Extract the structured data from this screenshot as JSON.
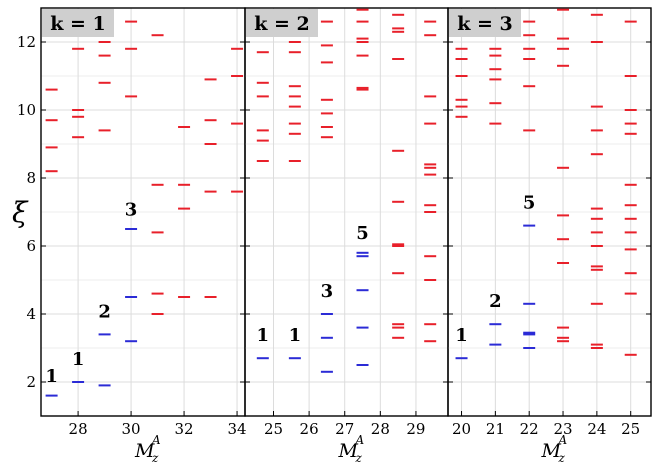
{
  "chart_data": {
    "type": "scatter",
    "ylabel": "ξ",
    "ylim": [
      1,
      13
    ],
    "y_ticks": [
      2,
      4,
      6,
      8,
      10,
      12
    ],
    "grid": true,
    "colors": {
      "red": "#e8202a",
      "blue": "#2b2bd6"
    },
    "panels": [
      {
        "label": "k = 1",
        "xlabel_main": "M",
        "xlabel_sub": "z",
        "xlabel_sup": "A",
        "xlim": [
          26.6,
          34.3
        ],
        "x_ticks": [
          28,
          30,
          32,
          34
        ],
        "series": [
          {
            "color": "red",
            "points": [
              [
                27,
                8.2
              ],
              [
                27,
                8.9
              ],
              [
                27,
                9.7
              ],
              [
                27,
                10.6
              ],
              [
                28,
                9.2
              ],
              [
                28,
                9.8
              ],
              [
                28,
                10.0
              ],
              [
                28,
                11.8
              ],
              [
                29,
                9.4
              ],
              [
                29,
                10.8
              ],
              [
                29,
                11.6
              ],
              [
                29,
                12.0
              ],
              [
                30,
                10.4
              ],
              [
                30,
                11.8
              ],
              [
                30,
                12.6
              ],
              [
                31,
                4.0
              ],
              [
                31,
                4.6
              ],
              [
                31,
                6.4
              ],
              [
                31,
                7.8
              ],
              [
                31,
                12.2
              ],
              [
                32,
                4.5
              ],
              [
                32,
                7.1
              ],
              [
                32,
                7.8
              ],
              [
                32,
                9.5
              ],
              [
                33,
                4.5
              ],
              [
                33,
                7.6
              ],
              [
                33,
                9.0
              ],
              [
                33,
                9.7
              ],
              [
                33,
                10.9
              ],
              [
                34,
                7.6
              ],
              [
                34,
                9.6
              ],
              [
                34,
                11.0
              ],
              [
                34,
                11.8
              ]
            ]
          },
          {
            "color": "blue",
            "points": [
              [
                27,
                1.6
              ],
              [
                28,
                2.0
              ],
              [
                29,
                1.9
              ],
              [
                29,
                3.4
              ],
              [
                30,
                3.2
              ],
              [
                30,
                4.5
              ],
              [
                30,
                6.5
              ]
            ]
          }
        ],
        "annotations": [
          {
            "text": "1",
            "x": 27,
            "y": 2.0
          },
          {
            "text": "1",
            "x": 28,
            "y": 2.5
          },
          {
            "text": "2",
            "x": 29,
            "y": 3.9
          },
          {
            "text": "3",
            "x": 30,
            "y": 6.9
          }
        ]
      },
      {
        "label": "k = 2",
        "xlabel_main": "M",
        "xlabel_sub": "z",
        "xlabel_sup": "A",
        "xlim": [
          24.2,
          29.9
        ],
        "x_ticks": [
          25,
          26,
          27,
          28,
          29
        ],
        "series": [
          {
            "color": "red",
            "points": [
              [
                24.7,
                8.5
              ],
              [
                24.7,
                9.1
              ],
              [
                24.7,
                9.4
              ],
              [
                24.7,
                10.4
              ],
              [
                24.7,
                10.8
              ],
              [
                24.7,
                11.7
              ],
              [
                24.7,
                12.4
              ],
              [
                25.6,
                8.5
              ],
              [
                25.6,
                9.3
              ],
              [
                25.6,
                9.6
              ],
              [
                25.6,
                10.1
              ],
              [
                25.6,
                10.4
              ],
              [
                25.6,
                10.7
              ],
              [
                25.6,
                11.7
              ],
              [
                25.6,
                12.0
              ],
              [
                26.5,
                9.2
              ],
              [
                26.5,
                9.5
              ],
              [
                26.5,
                9.9
              ],
              [
                26.5,
                10.3
              ],
              [
                26.5,
                11.4
              ],
              [
                26.5,
                11.9
              ],
              [
                26.5,
                12.6
              ],
              [
                27.5,
                10.6
              ],
              [
                27.5,
                10.65
              ],
              [
                27.5,
                11.6
              ],
              [
                27.5,
                12.0
              ],
              [
                27.5,
                12.1
              ],
              [
                27.5,
                12.6
              ],
              [
                27.5,
                12.95
              ],
              [
                28.5,
                3.3
              ],
              [
                28.5,
                3.6
              ],
              [
                28.5,
                3.7
              ],
              [
                28.5,
                5.2
              ],
              [
                28.5,
                6.0
              ],
              [
                28.5,
                6.05
              ],
              [
                28.5,
                7.3
              ],
              [
                28.5,
                8.8
              ],
              [
                28.5,
                11.5
              ],
              [
                28.5,
                12.3
              ],
              [
                28.5,
                12.4
              ],
              [
                28.5,
                12.8
              ],
              [
                29.4,
                3.2
              ],
              [
                29.4,
                3.7
              ],
              [
                29.4,
                5.0
              ],
              [
                29.4,
                5.7
              ],
              [
                29.4,
                7.0
              ],
              [
                29.4,
                7.2
              ],
              [
                29.4,
                8.1
              ],
              [
                29.4,
                8.3
              ],
              [
                29.4,
                8.4
              ],
              [
                29.4,
                9.6
              ],
              [
                29.4,
                10.4
              ],
              [
                29.4,
                12.2
              ],
              [
                29.4,
                12.6
              ]
            ]
          },
          {
            "color": "blue",
            "points": [
              [
                24.7,
                2.7
              ],
              [
                25.6,
                2.7
              ],
              [
                26.5,
                2.3
              ],
              [
                26.5,
                3.3
              ],
              [
                26.5,
                4.0
              ],
              [
                27.5,
                2.5
              ],
              [
                27.5,
                3.6
              ],
              [
                27.5,
                4.7
              ],
              [
                27.5,
                5.7
              ],
              [
                27.5,
                5.8
              ]
            ]
          }
        ],
        "annotations": [
          {
            "text": "1",
            "x": 24.7,
            "y": 3.2
          },
          {
            "text": "1",
            "x": 25.6,
            "y": 3.2
          },
          {
            "text": "3",
            "x": 26.5,
            "y": 4.5
          },
          {
            "text": "5",
            "x": 27.5,
            "y": 6.2
          }
        ]
      },
      {
        "label": "k = 3",
        "xlabel_main": "M",
        "xlabel_sub": "z",
        "xlabel_sup": "A",
        "xlim": [
          19.6,
          25.6
        ],
        "x_ticks": [
          20,
          21,
          22,
          23,
          24,
          25
        ],
        "series": [
          {
            "color": "red",
            "points": [
              [
                20,
                9.8
              ],
              [
                20,
                10.1
              ],
              [
                20,
                10.3
              ],
              [
                20,
                11.0
              ],
              [
                20,
                11.5
              ],
              [
                20,
                11.8
              ],
              [
                20,
                12.6
              ],
              [
                21,
                9.6
              ],
              [
                21,
                10.2
              ],
              [
                21,
                10.9
              ],
              [
                21,
                11.2
              ],
              [
                21,
                11.6
              ],
              [
                21,
                11.8
              ],
              [
                21,
                12.6
              ],
              [
                22,
                9.4
              ],
              [
                22,
                10.7
              ],
              [
                22,
                11.5
              ],
              [
                22,
                11.8
              ],
              [
                22,
                12.2
              ],
              [
                22,
                12.6
              ],
              [
                23,
                3.2
              ],
              [
                23,
                3.3
              ],
              [
                23,
                3.6
              ],
              [
                23,
                5.5
              ],
              [
                23,
                6.2
              ],
              [
                23,
                6.9
              ],
              [
                23,
                8.3
              ],
              [
                23,
                11.3
              ],
              [
                23,
                11.8
              ],
              [
                23,
                12.1
              ],
              [
                23,
                12.95
              ],
              [
                24,
                3.0
              ],
              [
                24,
                3.1
              ],
              [
                24,
                4.3
              ],
              [
                24,
                5.3
              ],
              [
                24,
                5.4
              ],
              [
                24,
                6.0
              ],
              [
                24,
                6.4
              ],
              [
                24,
                6.8
              ],
              [
                24,
                7.1
              ],
              [
                24,
                8.7
              ],
              [
                24,
                9.4
              ],
              [
                24,
                10.1
              ],
              [
                24,
                12.0
              ],
              [
                24,
                12.8
              ],
              [
                25,
                2.8
              ],
              [
                25,
                4.6
              ],
              [
                25,
                5.2
              ],
              [
                25,
                5.9
              ],
              [
                25,
                6.4
              ],
              [
                25,
                6.8
              ],
              [
                25,
                7.2
              ],
              [
                25,
                7.8
              ],
              [
                25,
                9.3
              ],
              [
                25,
                9.6
              ],
              [
                25,
                10.0
              ],
              [
                25,
                11.0
              ],
              [
                25,
                12.6
              ]
            ]
          },
          {
            "color": "blue",
            "points": [
              [
                20,
                2.7
              ],
              [
                21,
                3.1
              ],
              [
                21,
                3.7
              ],
              [
                22,
                3.0
              ],
              [
                22,
                3.4
              ],
              [
                22,
                3.45
              ],
              [
                22,
                4.3
              ],
              [
                22,
                6.6
              ]
            ]
          }
        ],
        "annotations": [
          {
            "text": "1",
            "x": 20,
            "y": 3.2
          },
          {
            "text": "2",
            "x": 21,
            "y": 4.2
          },
          {
            "text": "5",
            "x": 22,
            "y": 7.1
          }
        ]
      }
    ]
  }
}
